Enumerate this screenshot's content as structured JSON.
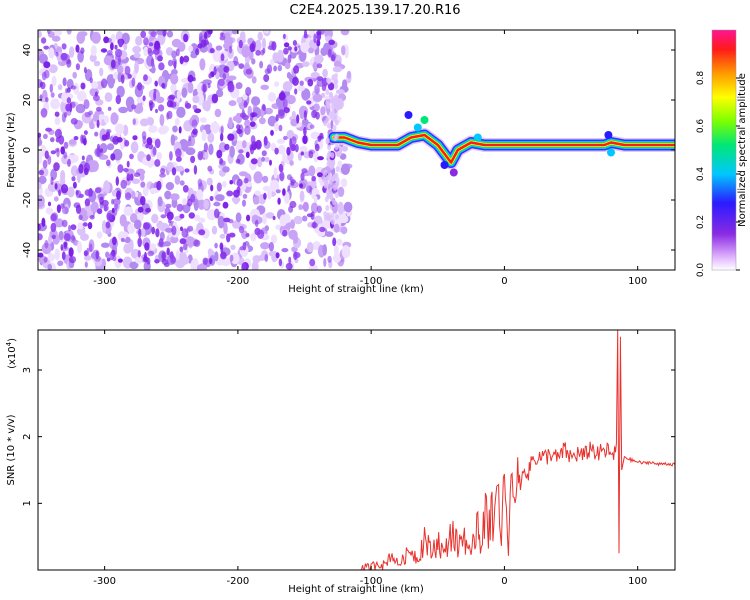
{
  "figure_title": "C2E4.2025.139.17.20.R16",
  "colors": {
    "snr_line": "#e8322d",
    "speckle": "#7a1ee6",
    "frame": "#000000",
    "gridline": "#000000"
  },
  "chart_data": [
    {
      "type": "heatmap",
      "xlabel": "Height of straight line (km)",
      "ylabel": "Frequency (Hz)",
      "xlim": [
        -350,
        128
      ],
      "ylim": [
        -48,
        48
      ],
      "x_ticks": [
        -300,
        -200,
        -100,
        0,
        100
      ],
      "y_ticks": [
        -40,
        -20,
        0,
        20,
        40
      ],
      "colorbar": {
        "label": "Normalized spectral amplitude",
        "range": [
          0,
          1
        ],
        "ticks": [
          0.0,
          0.2,
          0.4,
          0.6,
          0.8
        ],
        "tick_labels": [
          "0.0",
          "0.2",
          "0.4",
          "0.6",
          "0.8"
        ],
        "colormap": "rainbow (magenta-purple-blue-cyan-green-yellow-orange-red)"
      },
      "noise_region": {
        "x_from": -350,
        "x_to": -125,
        "level": 0.12
      },
      "signal_ridge": {
        "x_from": -128,
        "x_to": 128,
        "points": [
          {
            "x": -128,
            "y": 5
          },
          {
            "x": -120,
            "y": 5
          },
          {
            "x": -110,
            "y": 3
          },
          {
            "x": -100,
            "y": 2
          },
          {
            "x": -90,
            "y": 2
          },
          {
            "x": -80,
            "y": 2
          },
          {
            "x": -70,
            "y": 5
          },
          {
            "x": -60,
            "y": 6
          },
          {
            "x": -50,
            "y": 2
          },
          {
            "x": -40,
            "y": -5
          },
          {
            "x": -35,
            "y": 0
          },
          {
            "x": -25,
            "y": 3
          },
          {
            "x": -15,
            "y": 2
          },
          {
            "x": 0,
            "y": 2
          },
          {
            "x": 20,
            "y": 2
          },
          {
            "x": 50,
            "y": 2
          },
          {
            "x": 75,
            "y": 2
          },
          {
            "x": 80,
            "y": 3
          },
          {
            "x": 90,
            "y": 2
          },
          {
            "x": 128,
            "y": 2
          }
        ]
      }
    },
    {
      "type": "line",
      "xlabel": "Height of straight line (km)",
      "ylabel": "SNR (10 * v/v)",
      "y_multiplier": "(x10",
      "y_multiplier_exp": "4",
      "y_multiplier_close": ")",
      "xlim": [
        -350,
        128
      ],
      "ylim": [
        0,
        36000
      ],
      "x_ticks": [
        -300,
        -200,
        -100,
        0,
        100
      ],
      "y_ticks": [
        10000,
        20000,
        30000
      ],
      "y_tick_labels": [
        "1",
        "2",
        "3"
      ],
      "series": [
        {
          "x": [
            -350,
            -250,
            -150,
            -110,
            -100,
            -95,
            -90,
            -85,
            -80,
            -75,
            -70,
            -65,
            -60,
            -55,
            -50,
            -45,
            -40,
            -35,
            -30,
            -25,
            -20,
            -18,
            -15,
            -12,
            -10,
            -8,
            -5,
            -3,
            0,
            3,
            5,
            8,
            10,
            12,
            15,
            18,
            20,
            25,
            30,
            35,
            40,
            45,
            50,
            55,
            60,
            65,
            70,
            75,
            80,
            82,
            84,
            85,
            86,
            87,
            88,
            90,
            95,
            100,
            105,
            110,
            115,
            120,
            128
          ],
          "y": [
            0,
            0,
            0,
            0,
            300,
            1200,
            600,
            2500,
            800,
            1800,
            3200,
            1500,
            5000,
            2500,
            4500,
            2200,
            6000,
            3500,
            5500,
            1500,
            8500,
            4000,
            9000,
            5500,
            12000,
            6500,
            11000,
            4000,
            13500,
            3000,
            14500,
            10000,
            15500,
            12000,
            16000,
            14000,
            16500,
            17000,
            16800,
            17500,
            16600,
            18000,
            16800,
            17500,
            17000,
            18500,
            17200,
            18000,
            17500,
            16500,
            19000,
            36000,
            2500,
            35000,
            15000,
            17000,
            16500,
            16200,
            16000,
            16200,
            15800,
            16000,
            15800
          ]
        }
      ]
    }
  ]
}
